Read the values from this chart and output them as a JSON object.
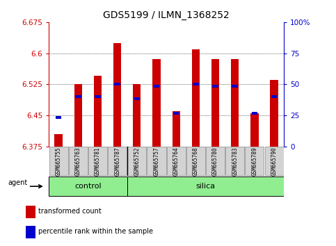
{
  "title": "GDS5199 / ILMN_1368252",
  "samples": [
    "GSM665755",
    "GSM665763",
    "GSM665781",
    "GSM665787",
    "GSM665752",
    "GSM665757",
    "GSM665764",
    "GSM665768",
    "GSM665780",
    "GSM665783",
    "GSM665789",
    "GSM665790"
  ],
  "red_values": [
    6.405,
    6.525,
    6.545,
    6.625,
    6.525,
    6.585,
    6.46,
    6.61,
    6.585,
    6.585,
    6.455,
    6.535
  ],
  "blue_values": [
    6.445,
    6.495,
    6.495,
    6.525,
    6.49,
    6.52,
    6.455,
    6.525,
    6.52,
    6.52,
    6.455,
    6.495
  ],
  "ymin": 6.375,
  "ymax": 6.675,
  "yticks": [
    6.375,
    6.45,
    6.525,
    6.6,
    6.675
  ],
  "ytick_labels": [
    "6.375",
    "6.45",
    "6.525",
    "6.6",
    "6.675"
  ],
  "right_yticks": [
    0,
    25,
    50,
    75,
    100
  ],
  "right_ytick_labels": [
    "0",
    "25",
    "50",
    "75",
    "100%"
  ],
  "group_divider": 4,
  "bar_width": 0.4,
  "red_color": "#cc0000",
  "blue_color": "#0000cc",
  "bg_color": "#ffffff",
  "plot_bg_color": "#ffffff",
  "agent_label": "agent",
  "legend_red": "transformed count",
  "legend_blue": "percentile rank within the sample",
  "left_axis_color": "#cc0000",
  "right_axis_color": "#0000cc",
  "title_fontsize": 10,
  "tick_fontsize": 7.5,
  "sample_fontsize": 5.5,
  "group_fontsize": 8,
  "legend_fontsize": 7,
  "green_color": "#90ee90"
}
